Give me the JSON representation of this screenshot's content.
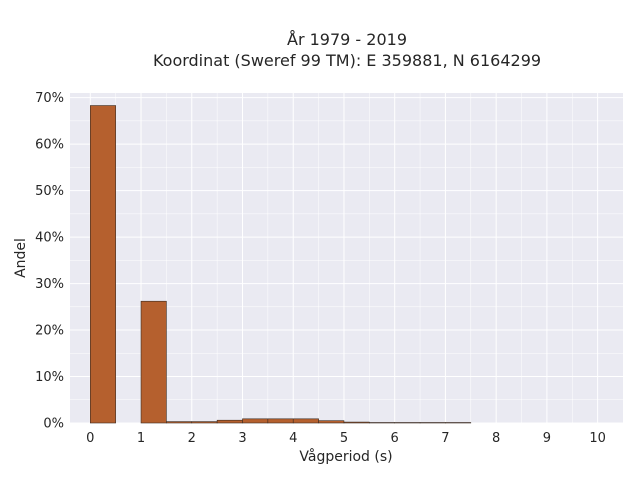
{
  "chart_data": {
    "type": "bar",
    "title_lines": [
      "År 1979 - 2019",
      "Koordinat (Sweref 99 TM): E 359881, N 6164299"
    ],
    "xlabel": "Vågperiod (s)",
    "ylabel": "Andel",
    "xlim": [
      -0.4,
      10.5
    ],
    "ylim": [
      0,
      0.71
    ],
    "x_ticks": [
      0,
      1,
      2,
      3,
      4,
      5,
      6,
      7,
      8,
      9,
      10
    ],
    "y_ticks": [
      0,
      0.1,
      0.2,
      0.3,
      0.4,
      0.5,
      0.6,
      0.7
    ],
    "y_tick_labels": [
      "0%",
      "10%",
      "20%",
      "30%",
      "40%",
      "50%",
      "60%",
      "70%"
    ],
    "bin_width": 0.5,
    "bins": [
      {
        "x0": 0.0,
        "value": 0.683
      },
      {
        "x0": 0.5,
        "value": 0.0
      },
      {
        "x0": 1.0,
        "value": 0.262
      },
      {
        "x0": 1.5,
        "value": 0.003
      },
      {
        "x0": 2.0,
        "value": 0.003
      },
      {
        "x0": 2.5,
        "value": 0.006
      },
      {
        "x0": 3.0,
        "value": 0.009
      },
      {
        "x0": 3.5,
        "value": 0.009
      },
      {
        "x0": 4.0,
        "value": 0.009
      },
      {
        "x0": 4.5,
        "value": 0.005
      },
      {
        "x0": 5.0,
        "value": 0.002
      },
      {
        "x0": 5.5,
        "value": 0.001
      },
      {
        "x0": 6.0,
        "value": 0.001
      },
      {
        "x0": 6.5,
        "value": 0.001
      },
      {
        "x0": 7.0,
        "value": 0.001
      }
    ],
    "bar_color": "#b5602e",
    "bar_edge_color": "#3a2a20",
    "plot_background": "#eaeaf2",
    "grid": true,
    "grid_color": "#ffffff"
  }
}
